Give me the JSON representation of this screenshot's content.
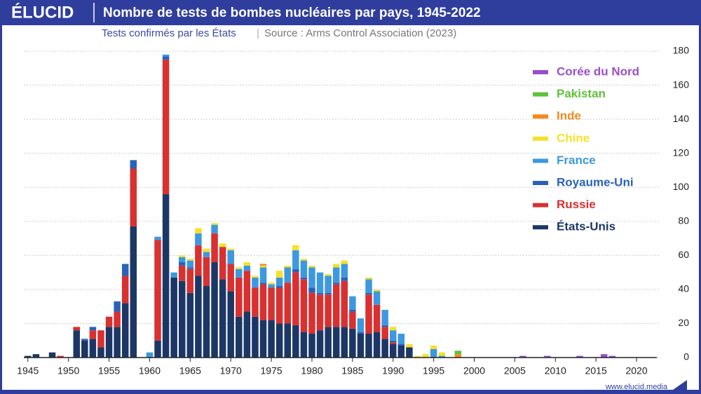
{
  "header": {
    "brand": "ÉLUCID"
  },
  "footer": {
    "url": "www.elucid.media"
  },
  "chart_data": {
    "type": "stacked_bar",
    "title": "Nombre de tests de bombes nucléaires par pays, 1945-2022",
    "subtitle": "Tests confirmés par les États",
    "source": "Source : Arms Control Association (2023)",
    "x": [
      1945,
      1946,
      1947,
      1948,
      1949,
      1950,
      1951,
      1952,
      1953,
      1954,
      1955,
      1956,
      1957,
      1958,
      1959,
      1960,
      1961,
      1962,
      1963,
      1964,
      1965,
      1966,
      1967,
      1968,
      1969,
      1970,
      1971,
      1972,
      1973,
      1974,
      1975,
      1976,
      1977,
      1978,
      1979,
      1980,
      1981,
      1982,
      1983,
      1984,
      1985,
      1986,
      1987,
      1988,
      1989,
      1990,
      1991,
      1992,
      1993,
      1994,
      1995,
      1996,
      1997,
      1998,
      1999,
      2000,
      2001,
      2002,
      2003,
      2004,
      2005,
      2006,
      2007,
      2008,
      2009,
      2010,
      2011,
      2012,
      2013,
      2014,
      2015,
      2016,
      2017,
      2018,
      2019,
      2020,
      2021,
      2022
    ],
    "xlim": [
      1944.5,
      2022.5
    ],
    "xticks": [
      1945,
      1950,
      1955,
      1960,
      1965,
      1970,
      1975,
      1980,
      1985,
      1990,
      1995,
      2000,
      2005,
      2010,
      2015,
      2020
    ],
    "ylim": [
      0,
      180
    ],
    "yticks": [
      0,
      20,
      40,
      60,
      80,
      100,
      120,
      140,
      160,
      180
    ],
    "grid": true,
    "legend": "upper right",
    "series": [
      {
        "name": "États-Unis",
        "color": "#1c3766",
        "values": [
          1,
          2,
          0,
          3,
          0,
          0,
          16,
          10,
          11,
          6,
          18,
          18,
          32,
          77,
          0,
          0,
          10,
          96,
          47,
          45,
          38,
          48,
          42,
          56,
          46,
          39,
          24,
          27,
          24,
          22,
          22,
          20,
          20,
          19,
          15,
          14,
          16,
          18,
          18,
          18,
          17,
          14,
          14,
          15,
          11,
          8,
          7,
          6,
          0,
          0,
          0,
          0,
          0,
          0,
          0,
          0,
          0,
          0,
          0,
          0,
          0,
          0,
          0,
          0,
          0,
          0,
          0,
          0,
          0,
          0,
          0,
          0,
          0,
          0,
          0,
          0,
          0,
          0
        ]
      },
      {
        "name": "Russie",
        "color": "#d93030",
        "values": [
          0,
          0,
          0,
          0,
          1,
          0,
          2,
          0,
          5,
          10,
          6,
          9,
          16,
          34,
          0,
          0,
          59,
          79,
          0,
          9,
          14,
          18,
          17,
          17,
          19,
          16,
          23,
          24,
          17,
          21,
          19,
          21,
          24,
          31,
          31,
          24,
          21,
          19,
          25,
          27,
          10,
          0,
          23,
          16,
          7,
          1,
          0,
          0,
          0,
          0,
          0,
          0,
          0,
          0,
          0,
          0,
          0,
          0,
          0,
          0,
          0,
          0,
          0,
          0,
          0,
          0,
          0,
          0,
          0,
          0,
          0,
          0,
          0,
          0,
          0,
          0,
          0,
          0
        ]
      },
      {
        "name": "Royaume-Uni",
        "color": "#2a62b8",
        "values": [
          0,
          0,
          0,
          0,
          0,
          0,
          0,
          1,
          2,
          0,
          0,
          6,
          7,
          5,
          0,
          0,
          0,
          2,
          0,
          2,
          1,
          0,
          0,
          0,
          0,
          0,
          0,
          0,
          0,
          1,
          0,
          1,
          0,
          2,
          1,
          3,
          1,
          1,
          1,
          2,
          1,
          1,
          1,
          0,
          1,
          1,
          1,
          0,
          0,
          0,
          0,
          0,
          0,
          0,
          0,
          0,
          0,
          0,
          0,
          0,
          0,
          0,
          0,
          0,
          0,
          0,
          0,
          0,
          0,
          0,
          0,
          0,
          0,
          0,
          0,
          0,
          0,
          0
        ]
      },
      {
        "name": "France",
        "color": "#3d98e0",
        "values": [
          0,
          0,
          0,
          0,
          0,
          0,
          0,
          0,
          0,
          0,
          0,
          0,
          0,
          0,
          0,
          3,
          2,
          1,
          3,
          3,
          4,
          7,
          3,
          5,
          0,
          8,
          5,
          3,
          6,
          9,
          2,
          5,
          9,
          11,
          10,
          12,
          12,
          10,
          9,
          8,
          8,
          8,
          8,
          8,
          9,
          6,
          6,
          0,
          0,
          0,
          5,
          1,
          0,
          0,
          0,
          0,
          0,
          0,
          0,
          0,
          0,
          0,
          0,
          0,
          0,
          0,
          0,
          0,
          0,
          0,
          0,
          0,
          0,
          0,
          0,
          0,
          0,
          0
        ]
      },
      {
        "name": "Chine",
        "color": "#f5e12a",
        "values": [
          0,
          0,
          0,
          0,
          0,
          0,
          0,
          0,
          0,
          0,
          0,
          0,
          0,
          0,
          0,
          0,
          0,
          0,
          0,
          1,
          1,
          3,
          2,
          1,
          2,
          1,
          1,
          2,
          1,
          1,
          1,
          4,
          1,
          3,
          1,
          1,
          0,
          1,
          2,
          2,
          0,
          0,
          1,
          1,
          0,
          2,
          0,
          2,
          1,
          2,
          2,
          2,
          0,
          0,
          0,
          0,
          0,
          0,
          0,
          0,
          0,
          0,
          0,
          0,
          0,
          0,
          0,
          0,
          0,
          0,
          0,
          0,
          0,
          0,
          0,
          0,
          0,
          0
        ]
      },
      {
        "name": "Inde",
        "color": "#f08a1c",
        "values": [
          0,
          0,
          0,
          0,
          0,
          0,
          0,
          0,
          0,
          0,
          0,
          0,
          0,
          0,
          0,
          0,
          0,
          0,
          0,
          0,
          0,
          0,
          0,
          0,
          0,
          0,
          0,
          0,
          0,
          1,
          0,
          0,
          0,
          0,
          0,
          0,
          0,
          0,
          0,
          0,
          0,
          0,
          0,
          0,
          0,
          0,
          0,
          0,
          0,
          0,
          0,
          0,
          0,
          2,
          0,
          0,
          0,
          0,
          0,
          0,
          0,
          0,
          0,
          0,
          0,
          0,
          0,
          0,
          0,
          0,
          0,
          0,
          0,
          0,
          0,
          0,
          0,
          0
        ]
      },
      {
        "name": "Pakistan",
        "color": "#5cc23a",
        "values": [
          0,
          0,
          0,
          0,
          0,
          0,
          0,
          0,
          0,
          0,
          0,
          0,
          0,
          0,
          0,
          0,
          0,
          0,
          0,
          0,
          0,
          0,
          0,
          0,
          0,
          0,
          0,
          0,
          0,
          0,
          0,
          0,
          0,
          0,
          0,
          0,
          0,
          0,
          0,
          0,
          0,
          0,
          0,
          0,
          0,
          0,
          0,
          0,
          0,
          0,
          0,
          0,
          0,
          2,
          0,
          0,
          0,
          0,
          0,
          0,
          0,
          0,
          0,
          0,
          0,
          0,
          0,
          0,
          0,
          0,
          0,
          0,
          0,
          0,
          0,
          0,
          0,
          0
        ]
      },
      {
        "name": "Corée du Nord",
        "color": "#9a4fc8",
        "values": [
          0,
          0,
          0,
          0,
          0,
          0,
          0,
          0,
          0,
          0,
          0,
          0,
          0,
          0,
          0,
          0,
          0,
          0,
          0,
          0,
          0,
          0,
          0,
          0,
          0,
          0,
          0,
          0,
          0,
          0,
          0,
          0,
          0,
          0,
          0,
          0,
          0,
          0,
          0,
          0,
          0,
          0,
          0,
          0,
          0,
          0,
          0,
          0,
          0,
          0,
          0,
          0,
          0,
          0,
          0,
          0,
          0,
          0,
          0,
          0,
          0,
          1,
          0,
          0,
          1,
          0,
          0,
          0,
          1,
          0,
          0,
          2,
          1,
          0,
          0,
          0,
          0,
          0
        ]
      }
    ]
  }
}
